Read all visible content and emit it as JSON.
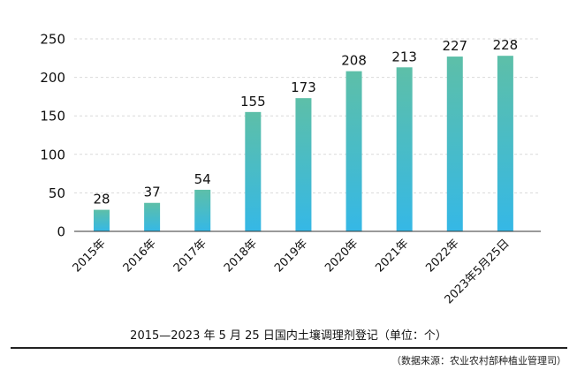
{
  "chart_data": {
    "type": "bar",
    "categories": [
      "2015年",
      "2016年",
      "2017年",
      "2018年",
      "2019年",
      "2020年",
      "2021年",
      "2022年",
      "2023年5月25日"
    ],
    "values": [
      28,
      37,
      54,
      155,
      173,
      208,
      213,
      227,
      228
    ],
    "ylim": [
      0,
      250
    ],
    "yticks": [
      0,
      50,
      100,
      150,
      200,
      250
    ],
    "grid": true,
    "colors": {
      "bar_top": "#5dbfa8",
      "bar_bottom": "#35b8e6"
    }
  },
  "caption": "2015—2023 年 5 月 25 日国内土壤调理剂登记（单位：个）",
  "source": "（数据来源：农业农村部种植业管理司）"
}
